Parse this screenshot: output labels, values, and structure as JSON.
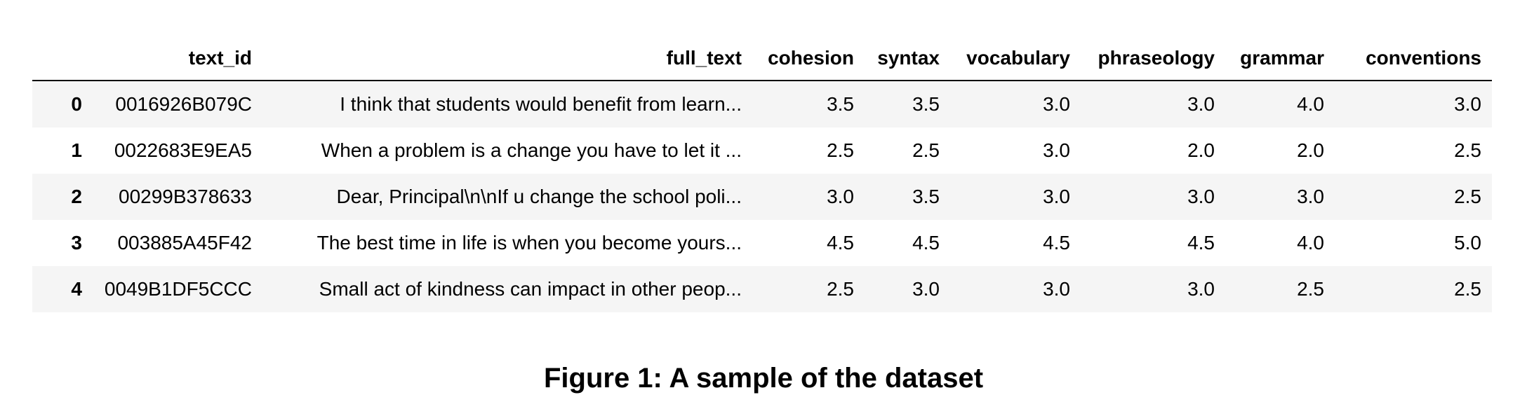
{
  "table": {
    "columns": [
      "",
      "text_id",
      "full_text",
      "cohesion",
      "syntax",
      "vocabulary",
      "phraseology",
      "grammar",
      "conventions"
    ],
    "rows": [
      {
        "index": "0",
        "text_id": "0016926B079C",
        "full_text": "I think that students would benefit from learn...",
        "cohesion": "3.5",
        "syntax": "3.5",
        "vocabulary": "3.0",
        "phraseology": "3.0",
        "grammar": "4.0",
        "conventions": "3.0"
      },
      {
        "index": "1",
        "text_id": "0022683E9EA5",
        "full_text": "When a problem is a change you have to let it ...",
        "cohesion": "2.5",
        "syntax": "2.5",
        "vocabulary": "3.0",
        "phraseology": "2.0",
        "grammar": "2.0",
        "conventions": "2.5"
      },
      {
        "index": "2",
        "text_id": "00299B378633",
        "full_text": "Dear, Principal\\n\\nIf u change the school poli...",
        "cohesion": "3.0",
        "syntax": "3.5",
        "vocabulary": "3.0",
        "phraseology": "3.0",
        "grammar": "3.0",
        "conventions": "2.5"
      },
      {
        "index": "3",
        "text_id": "003885A45F42",
        "full_text": "The best time in life is when you become yours...",
        "cohesion": "4.5",
        "syntax": "4.5",
        "vocabulary": "4.5",
        "phraseology": "4.5",
        "grammar": "4.0",
        "conventions": "5.0"
      },
      {
        "index": "4",
        "text_id": "0049B1DF5CCC",
        "full_text": "Small act of kindness can impact in other peop...",
        "cohesion": "2.5",
        "syntax": "3.0",
        "vocabulary": "3.0",
        "phraseology": "3.0",
        "grammar": "2.5",
        "conventions": "2.5"
      }
    ]
  },
  "caption": "Figure 1: A sample of the dataset"
}
